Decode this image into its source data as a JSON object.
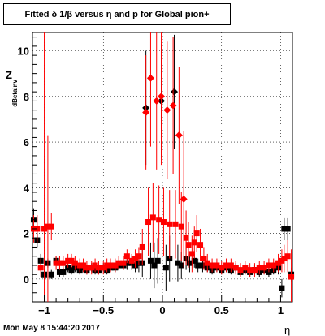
{
  "chart_data": {
    "type": "scatter",
    "title": "Fitted δ 1/β versus η and p for Global pion+",
    "xlabel": "η",
    "ylabel": "Z",
    "ylabel_subscript": "dBetainv",
    "xlim": [
      -1.1,
      1.1
    ],
    "ylim": [
      -1.0,
      10.8
    ],
    "x_ticks": [
      -1,
      -0.5,
      0,
      0.5,
      1
    ],
    "x_tick_labels": [
      "−1",
      "−0.5",
      "0",
      "0.5",
      "1"
    ],
    "y_ticks": [
      0,
      2,
      4,
      6,
      8,
      10
    ],
    "y_tick_labels": [
      "0",
      "2",
      "4",
      "6",
      "8",
      "10"
    ],
    "grid": true,
    "series": [
      {
        "color": "#000000",
        "marker": "square",
        "points": [
          {
            "x": -1.09,
            "y": 2.6,
            "err": 0.5
          },
          {
            "x": -1.06,
            "y": 1.7,
            "err": 0.3
          },
          {
            "x": -1.03,
            "y": 0.8,
            "err": 0.3
          },
          {
            "x": -1.0,
            "y": 0.2,
            "err": 0.2
          },
          {
            "x": -0.97,
            "y": 0.7,
            "err": 0.2
          },
          {
            "x": -0.94,
            "y": 0.2,
            "err": 0.2
          },
          {
            "x": -0.9,
            "y": 0.8,
            "err": 0.2
          },
          {
            "x": -0.87,
            "y": 0.3,
            "err": 0.2
          },
          {
            "x": -0.84,
            "y": 0.3,
            "err": 0.2
          },
          {
            "x": -0.8,
            "y": 0.5,
            "err": 0.2
          },
          {
            "x": -0.77,
            "y": 0.4,
            "err": 0.2
          },
          {
            "x": -0.74,
            "y": 0.5,
            "err": 0.2
          },
          {
            "x": -0.7,
            "y": 0.4,
            "err": 0.2
          },
          {
            "x": -0.67,
            "y": 0.5,
            "err": 0.2
          },
          {
            "x": -0.64,
            "y": 0.4,
            "err": 0.2
          },
          {
            "x": -0.6,
            "y": 0.5,
            "err": 0.2
          },
          {
            "x": -0.57,
            "y": 0.4,
            "err": 0.2
          },
          {
            "x": -0.54,
            "y": 0.4,
            "err": 0.2
          },
          {
            "x": -0.5,
            "y": 0.5,
            "err": 0.2
          },
          {
            "x": -0.47,
            "y": 0.4,
            "err": 0.2
          },
          {
            "x": -0.44,
            "y": 0.5,
            "err": 0.2
          },
          {
            "x": -0.4,
            "y": 0.5,
            "err": 0.2
          },
          {
            "x": -0.37,
            "y": 0.6,
            "err": 0.2
          },
          {
            "x": -0.33,
            "y": 0.6,
            "err": 0.2
          },
          {
            "x": -0.3,
            "y": 0.7,
            "err": 0.3
          },
          {
            "x": -0.26,
            "y": 0.7,
            "err": 0.3
          },
          {
            "x": -0.23,
            "y": 0.6,
            "err": 0.3
          },
          {
            "x": -0.2,
            "y": 0.7,
            "err": 0.4
          },
          {
            "x": -0.17,
            "y": 0.7,
            "err": 0.6
          },
          {
            "x": -0.14,
            "y": 7.5,
            "err": 2.5
          },
          {
            "x": -0.1,
            "y": 0.8,
            "err": 0.8
          },
          {
            "x": -0.07,
            "y": 0.6,
            "err": 1.0
          },
          {
            "x": -0.04,
            "y": 0.8,
            "err": 1.0
          },
          {
            "x": -0.01,
            "y": 7.8,
            "err": 2.5
          },
          {
            "x": 0.03,
            "y": 0.5,
            "err": 1.0
          },
          {
            "x": 0.06,
            "y": 0.9,
            "err": 1.0
          },
          {
            "x": 0.1,
            "y": 8.2,
            "err": 2.5
          },
          {
            "x": 0.13,
            "y": 0.7,
            "err": 0.8
          },
          {
            "x": 0.16,
            "y": 0.6,
            "err": 0.6
          },
          {
            "x": 0.2,
            "y": 0.9,
            "err": 0.5
          },
          {
            "x": 0.23,
            "y": 0.7,
            "err": 0.4
          },
          {
            "x": 0.27,
            "y": 0.8,
            "err": 0.3
          },
          {
            "x": 0.3,
            "y": 0.6,
            "err": 0.3
          },
          {
            "x": 0.34,
            "y": 0.6,
            "err": 0.3
          },
          {
            "x": 0.38,
            "y": 0.5,
            "err": 0.2
          },
          {
            "x": 0.42,
            "y": 0.4,
            "err": 0.2
          },
          {
            "x": 0.46,
            "y": 0.5,
            "err": 0.2
          },
          {
            "x": 0.5,
            "y": 0.4,
            "err": 0.2
          },
          {
            "x": 0.54,
            "y": 0.5,
            "err": 0.2
          },
          {
            "x": 0.58,
            "y": 0.4,
            "err": 0.2
          },
          {
            "x": 0.62,
            "y": 0.5,
            "err": 0.2
          },
          {
            "x": 0.66,
            "y": 0.3,
            "err": 0.2
          },
          {
            "x": 0.7,
            "y": 0.4,
            "err": 0.2
          },
          {
            "x": 0.74,
            "y": 0.3,
            "err": 0.2
          },
          {
            "x": 0.78,
            "y": 0.4,
            "err": 0.2
          },
          {
            "x": 0.82,
            "y": 0.3,
            "err": 0.2
          },
          {
            "x": 0.86,
            "y": 0.4,
            "err": 0.2
          },
          {
            "x": 0.9,
            "y": 0.3,
            "err": 0.2
          },
          {
            "x": 0.94,
            "y": 0.4,
            "err": 0.2
          },
          {
            "x": 0.98,
            "y": 0.5,
            "err": 0.3
          },
          {
            "x": 1.01,
            "y": -0.4,
            "err": 0.4
          },
          {
            "x": 1.03,
            "y": 2.2,
            "err": 0.5
          },
          {
            "x": 1.06,
            "y": 2.2,
            "err": 0.5
          },
          {
            "x": 1.09,
            "y": 0.2,
            "err": 0.3
          }
        ]
      },
      {
        "color": "#ff0000",
        "marker": "square/diamond",
        "points": [
          {
            "x": -1.09,
            "y": 2.2,
            "err": 0.6
          },
          {
            "x": -1.06,
            "y": 2.2,
            "err": 0.6
          },
          {
            "x": -1.03,
            "y": 0.5,
            "err": 0.4
          },
          {
            "x": -1.0,
            "y": 2.2,
            "err": 9.0
          },
          {
            "x": -0.97,
            "y": 2.3,
            "err": 4.0
          },
          {
            "x": -0.94,
            "y": 2.3,
            "err": 0.6
          },
          {
            "x": -0.9,
            "y": 0.7,
            "err": 0.3
          },
          {
            "x": -0.87,
            "y": 0.7,
            "err": 0.3
          },
          {
            "x": -0.84,
            "y": 0.7,
            "err": 0.3
          },
          {
            "x": -0.8,
            "y": 0.8,
            "err": 0.3
          },
          {
            "x": -0.77,
            "y": 0.8,
            "err": 0.3
          },
          {
            "x": -0.74,
            "y": 0.7,
            "err": 0.3
          },
          {
            "x": -0.7,
            "y": 0.6,
            "err": 0.3
          },
          {
            "x": -0.67,
            "y": 0.6,
            "err": 0.3
          },
          {
            "x": -0.64,
            "y": 0.5,
            "err": 0.3
          },
          {
            "x": -0.6,
            "y": 0.5,
            "err": 0.3
          },
          {
            "x": -0.57,
            "y": 0.6,
            "err": 0.3
          },
          {
            "x": -0.54,
            "y": 0.5,
            "err": 0.3
          },
          {
            "x": -0.5,
            "y": 0.5,
            "err": 0.3
          },
          {
            "x": -0.47,
            "y": 0.6,
            "err": 0.3
          },
          {
            "x": -0.44,
            "y": 0.6,
            "err": 0.3
          },
          {
            "x": -0.4,
            "y": 0.6,
            "err": 0.3
          },
          {
            "x": -0.37,
            "y": 0.7,
            "err": 0.3
          },
          {
            "x": -0.33,
            "y": 0.7,
            "err": 0.3
          },
          {
            "x": -0.3,
            "y": 1.0,
            "err": 0.3
          },
          {
            "x": -0.26,
            "y": 0.8,
            "err": 0.3
          },
          {
            "x": -0.23,
            "y": 0.9,
            "err": 0.4
          },
          {
            "x": -0.2,
            "y": 1.0,
            "err": 0.4
          },
          {
            "x": -0.17,
            "y": 1.4,
            "err": 0.8
          },
          {
            "x": -0.14,
            "y": 7.3,
            "err": 2.5
          },
          {
            "x": -0.12,
            "y": 2.5,
            "err": 1.5
          },
          {
            "x": -0.1,
            "y": 8.8,
            "err": 3.0
          },
          {
            "x": -0.08,
            "y": 2.7,
            "err": 1.5
          },
          {
            "x": -0.05,
            "y": 7.8,
            "err": 3.0
          },
          {
            "x": -0.03,
            "y": 2.6,
            "err": 1.5
          },
          {
            "x": -0.01,
            "y": 8.0,
            "err": 3.0
          },
          {
            "x": 0.01,
            "y": 2.5,
            "err": 1.5
          },
          {
            "x": 0.04,
            "y": 7.4,
            "err": 3.0
          },
          {
            "x": 0.06,
            "y": 2.4,
            "err": 1.5
          },
          {
            "x": 0.09,
            "y": 7.6,
            "err": 3.0
          },
          {
            "x": 0.11,
            "y": 2.4,
            "err": 1.5
          },
          {
            "x": 0.14,
            "y": 6.3,
            "err": 3.0
          },
          {
            "x": 0.16,
            "y": 2.3,
            "err": 1.5
          },
          {
            "x": 0.18,
            "y": 3.5,
            "err": 3.0
          },
          {
            "x": 0.2,
            "y": 1.8,
            "err": 1.2
          },
          {
            "x": 0.22,
            "y": 1.5,
            "err": 1.0
          },
          {
            "x": 0.25,
            "y": 1.1,
            "err": 0.8
          },
          {
            "x": 0.27,
            "y": 1.6,
            "err": 0.7
          },
          {
            "x": 0.29,
            "y": 2.0,
            "err": 0.8
          },
          {
            "x": 0.32,
            "y": 1.5,
            "err": 0.7
          },
          {
            "x": 0.35,
            "y": 0.9,
            "err": 0.5
          },
          {
            "x": 0.38,
            "y": 0.7,
            "err": 0.4
          },
          {
            "x": 0.42,
            "y": 0.6,
            "err": 0.3
          },
          {
            "x": 0.46,
            "y": 0.6,
            "err": 0.3
          },
          {
            "x": 0.5,
            "y": 0.5,
            "err": 0.3
          },
          {
            "x": 0.54,
            "y": 0.6,
            "err": 0.3
          },
          {
            "x": 0.58,
            "y": 0.6,
            "err": 0.3
          },
          {
            "x": 0.62,
            "y": 0.5,
            "err": 0.3
          },
          {
            "x": 0.66,
            "y": 0.4,
            "err": 0.3
          },
          {
            "x": 0.7,
            "y": 0.5,
            "err": 0.3
          },
          {
            "x": 0.74,
            "y": 0.4,
            "err": 0.3
          },
          {
            "x": 0.78,
            "y": 0.4,
            "err": 0.3
          },
          {
            "x": 0.82,
            "y": 0.5,
            "err": 0.3
          },
          {
            "x": 0.86,
            "y": 0.5,
            "err": 0.3
          },
          {
            "x": 0.9,
            "y": 0.6,
            "err": 0.3
          },
          {
            "x": 0.94,
            "y": 0.6,
            "err": 0.3
          },
          {
            "x": 0.98,
            "y": 0.7,
            "err": 0.4
          },
          {
            "x": 1.01,
            "y": 0.8,
            "err": 0.5
          },
          {
            "x": 1.03,
            "y": 0.9,
            "err": 0.6
          },
          {
            "x": 1.06,
            "y": 1.0,
            "err": 0.7
          },
          {
            "x": 1.09,
            "y": 0.1,
            "err": 1.2
          }
        ]
      }
    ]
  },
  "footer": {
    "timestamp": "Mon May  8 15:44:20 2017"
  }
}
